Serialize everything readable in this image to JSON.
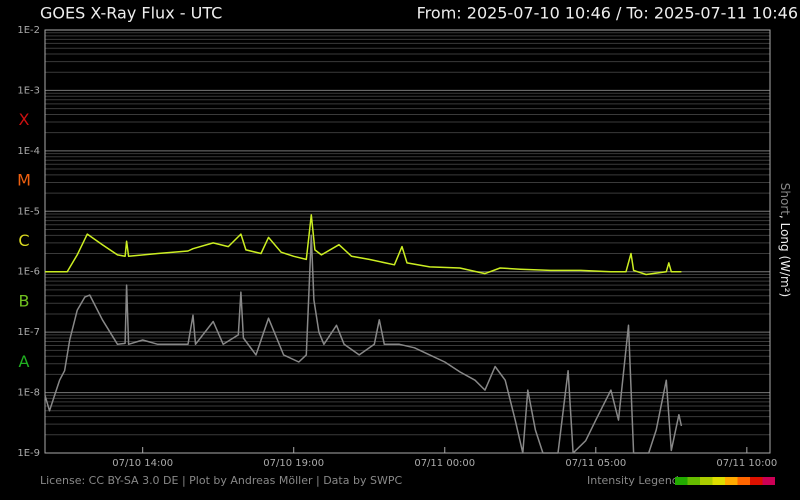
{
  "chart_data": {
    "type": "line",
    "title": "GOES X-Ray Flux - UTC",
    "subtitle": "From: 2025-07-10 10:46  /  To: 2025-07-11 10:46",
    "ylabel_parts": [
      "Short",
      ", Long (W/m²)"
    ],
    "log_y": true,
    "grid": true,
    "minor_grid": true,
    "xlim": [
      "2025-07-10 10:46",
      "2025-07-11 10:46"
    ],
    "xticks": [
      {
        "value": "2025-07-10 14:00",
        "label": "07/10 14:00"
      },
      {
        "value": "2025-07-10 19:00",
        "label": "07/10 19:00"
      },
      {
        "value": "2025-07-11 00:00",
        "label": "07/11 00:00"
      },
      {
        "value": "2025-07-11 05:00",
        "label": "07/11 05:00"
      },
      {
        "value": "2025-07-11 10:00",
        "label": "07/11 10:00"
      }
    ],
    "ylim": [
      1e-09,
      0.01
    ],
    "yticks": [
      {
        "value": 1e-09,
        "label": "1E-9"
      },
      {
        "value": 1e-08,
        "label": "1E-8"
      },
      {
        "value": 1e-07,
        "label": "1E-7"
      },
      {
        "value": 1e-06,
        "label": "1E-6"
      },
      {
        "value": 1e-05,
        "label": "1E-5"
      },
      {
        "value": 0.0001,
        "label": "1E-4"
      },
      {
        "value": 0.001,
        "label": "1E-3"
      },
      {
        "value": 0.01,
        "label": "1E-2"
      }
    ],
    "flare_classes": [
      {
        "label": "X",
        "value": 0.0001,
        "color": "#cc1010"
      },
      {
        "label": "M",
        "value": 1e-05,
        "color": "#ee6010"
      },
      {
        "label": "C",
        "value": 1e-06,
        "color": "#d8d820"
      },
      {
        "label": "B",
        "value": 1e-07,
        "color": "#70c020"
      },
      {
        "label": "A",
        "value": 1e-08,
        "color": "#20b020"
      }
    ],
    "series": [
      {
        "name": "Short",
        "color": "#888888",
        "x": [
          "2025-07-10 10:46",
          "2025-07-10 10:55",
          "2025-07-10 11:05",
          "2025-07-10 11:15",
          "2025-07-10 11:25",
          "2025-07-10 11:35",
          "2025-07-10 11:50",
          "2025-07-10 12:05",
          "2025-07-10 12:15",
          "2025-07-10 12:40",
          "2025-07-10 13:10",
          "2025-07-10 13:25",
          "2025-07-10 13:28",
          "2025-07-10 13:32",
          "2025-07-10 14:00",
          "2025-07-10 14:30",
          "2025-07-10 15:30",
          "2025-07-10 15:40",
          "2025-07-10 15:45",
          "2025-07-10 16:20",
          "2025-07-10 16:40",
          "2025-07-10 17:10",
          "2025-07-10 17:15",
          "2025-07-10 17:20",
          "2025-07-10 17:45",
          "2025-07-10 18:10",
          "2025-07-10 18:40",
          "2025-07-10 19:10",
          "2025-07-10 19:25",
          "2025-07-10 19:35",
          "2025-07-10 19:40",
          "2025-07-10 19:50",
          "2025-07-10 20:00",
          "2025-07-10 20:25",
          "2025-07-10 20:40",
          "2025-07-10 21:10",
          "2025-07-10 21:40",
          "2025-07-10 21:50",
          "2025-07-10 22:00",
          "2025-07-10 22:30",
          "2025-07-10 23:00",
          "2025-07-10 23:30",
          "2025-07-11 00:00",
          "2025-07-11 00:30",
          "2025-07-11 01:00",
          "2025-07-11 01:20",
          "2025-07-11 01:40",
          "2025-07-11 02:00",
          "2025-07-11 02:20",
          "2025-07-11 02:35",
          "2025-07-11 02:45",
          "2025-07-11 03:00",
          "2025-07-11 03:15",
          "2025-07-11 03:45",
          "2025-07-11 04:05",
          "2025-07-11 04:15",
          "2025-07-11 04:40",
          "2025-07-11 05:00",
          "2025-07-11 05:30",
          "2025-07-11 05:45",
          "2025-07-11 06:05",
          "2025-07-11 06:15",
          "2025-07-11 06:45",
          "2025-07-11 07:00",
          "2025-07-11 07:20",
          "2025-07-11 07:30",
          "2025-07-11 07:45",
          "2025-07-11 07:50"
        ],
        "values": [
          9e-09,
          5e-09,
          9e-09,
          1.6e-08,
          2.3e-08,
          7.4e-08,
          2.3e-07,
          3.8e-07,
          4.1e-07,
          1.6e-07,
          6.3e-08,
          6.5e-08,
          6e-07,
          6.3e-08,
          7.4e-08,
          6.3e-08,
          6.3e-08,
          1.9e-07,
          6.3e-08,
          1.5e-07,
          6.3e-08,
          9e-08,
          4.6e-07,
          8e-08,
          4.2e-08,
          1.7e-07,
          4.2e-08,
          3.2e-08,
          4.2e-08,
          4e-06,
          3.4e-07,
          1e-07,
          6.3e-08,
          1.3e-07,
          6.3e-08,
          4.2e-08,
          6.3e-08,
          1.6e-07,
          6.3e-08,
          6.3e-08,
          5.5e-08,
          4.2e-08,
          3.2e-08,
          2.2e-08,
          1.6e-08,
          1.1e-08,
          2.7e-08,
          1.6e-08,
          3.5e-09,
          1e-09,
          1.1e-08,
          2.4e-09,
          1e-09,
          1e-09,
          2.3e-08,
          1e-09,
          1.6e-09,
          3.5e-09,
          1.1e-08,
          3.5e-09,
          1.3e-07,
          1e-09,
          1e-09,
          2.4e-09,
          1.6e-08,
          1.1e-09,
          4.3e-09,
          2.8e-09
        ]
      },
      {
        "name": "Long",
        "color": "#ccee22",
        "x": [
          "2025-07-10 10:46",
          "2025-07-10 11:30",
          "2025-07-10 11:50",
          "2025-07-10 12:10",
          "2025-07-10 12:40",
          "2025-07-10 13:10",
          "2025-07-10 13:25",
          "2025-07-10 13:28",
          "2025-07-10 13:32",
          "2025-07-10 14:30",
          "2025-07-10 15:30",
          "2025-07-10 15:40",
          "2025-07-10 16:20",
          "2025-07-10 16:50",
          "2025-07-10 17:15",
          "2025-07-10 17:25",
          "2025-07-10 17:55",
          "2025-07-10 18:10",
          "2025-07-10 18:35",
          "2025-07-10 19:00",
          "2025-07-10 19:25",
          "2025-07-10 19:35",
          "2025-07-10 19:42",
          "2025-07-10 19:55",
          "2025-07-10 20:30",
          "2025-07-10 20:55",
          "2025-07-10 21:30",
          "2025-07-10 22:20",
          "2025-07-10 22:35",
          "2025-07-10 22:45",
          "2025-07-10 23:30",
          "2025-07-11 00:30",
          "2025-07-11 01:20",
          "2025-07-11 01:50",
          "2025-07-11 02:30",
          "2025-07-11 03:30",
          "2025-07-11 04:30",
          "2025-07-11 05:30",
          "2025-07-11 06:00",
          "2025-07-11 06:10",
          "2025-07-11 06:15",
          "2025-07-11 06:40",
          "2025-07-11 07:20",
          "2025-07-11 07:25",
          "2025-07-11 07:30",
          "2025-07-11 07:50"
        ],
        "values": [
          1e-06,
          1e-06,
          1.9e-06,
          4.2e-06,
          2.8e-06,
          1.9e-06,
          1.8e-06,
          3.2e-06,
          1.8e-06,
          2e-06,
          2.2e-06,
          2.4e-06,
          3e-06,
          2.6e-06,
          4.2e-06,
          2.3e-06,
          2e-06,
          3.7e-06,
          2.1e-06,
          1.8e-06,
          1.6e-06,
          8.7e-06,
          2.3e-06,
          1.9e-06,
          2.8e-06,
          1.8e-06,
          1.6e-06,
          1.3e-06,
          2.6e-06,
          1.4e-06,
          1.2e-06,
          1.15e-06,
          9.3e-07,
          1.15e-06,
          1.1e-06,
          1.05e-06,
          1.05e-06,
          1e-06,
          1e-06,
          2e-06,
          1.05e-06,
          9e-07,
          1e-06,
          1.4e-06,
          1e-06,
          1e-06
        ]
      }
    ],
    "footer": "License: CC BY-SA 3.0 DE | Plot by Andreas Möller | Data by SWPC",
    "intensity_legend": {
      "label": "Intensity Legend",
      "colors": [
        "#22aa00",
        "#66bb00",
        "#aacc00",
        "#dddd00",
        "#ffaa00",
        "#ff6600",
        "#dd1100",
        "#cc0055"
      ]
    }
  }
}
